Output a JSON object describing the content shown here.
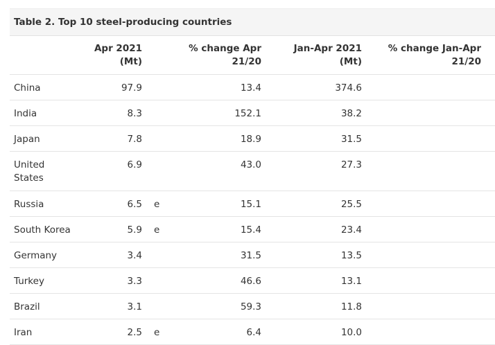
{
  "table": {
    "title": "Table 2. Top 10 steel-producing countries",
    "headers": {
      "apr_line1": "Apr 2021",
      "apr_line2": "(Mt)",
      "pct_apr_line1": "% change Apr",
      "pct_apr_line2": "21/20",
      "jan_apr_line1": "Jan-Apr 2021",
      "jan_apr_line2": "(Mt)",
      "pct_jan_line1": "% change Jan-Apr",
      "pct_jan_line2": "21/20"
    },
    "rows": [
      {
        "country": "China",
        "apr": "97.9",
        "flag": "",
        "pct_apr": "13.4",
        "jan_apr": "374.6"
      },
      {
        "country": "India",
        "apr": "8.3",
        "flag": "",
        "pct_apr": "152.1",
        "jan_apr": "38.2"
      },
      {
        "country": "Japan",
        "apr": "7.8",
        "flag": "",
        "pct_apr": "18.9",
        "jan_apr": "31.5"
      },
      {
        "country": "United States",
        "apr": "6.9",
        "flag": "",
        "pct_apr": "43.0",
        "jan_apr": "27.3"
      },
      {
        "country": "Russia",
        "apr": "6.5",
        "flag": "e",
        "pct_apr": "15.1",
        "jan_apr": "25.5"
      },
      {
        "country": "South Korea",
        "apr": "5.9",
        "flag": "e",
        "pct_apr": "15.4",
        "jan_apr": "23.4"
      },
      {
        "country": "Germany",
        "apr": "3.4",
        "flag": "",
        "pct_apr": "31.5",
        "jan_apr": "13.5"
      },
      {
        "country": "Turkey",
        "apr": "3.3",
        "flag": "",
        "pct_apr": "46.6",
        "jan_apr": "13.1"
      },
      {
        "country": "Brazil",
        "apr": "3.1",
        "flag": "",
        "pct_apr": "59.3",
        "jan_apr": "11.8"
      },
      {
        "country": "Iran",
        "apr": "2.5",
        "flag": "e",
        "pct_apr": "6.4",
        "jan_apr": "10.0"
      }
    ]
  }
}
